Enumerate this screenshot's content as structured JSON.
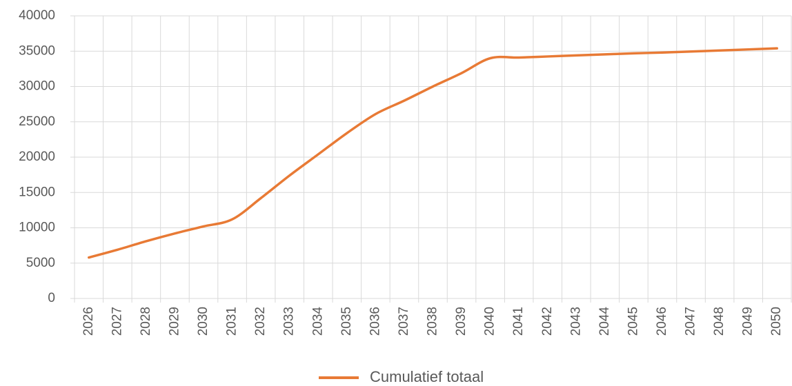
{
  "chart_data": {
    "type": "line",
    "categories": [
      "2026",
      "2027",
      "2028",
      "2029",
      "2030",
      "2031",
      "2032",
      "2033",
      "2034",
      "2035",
      "2036",
      "2037",
      "2038",
      "2039",
      "2040",
      "2041",
      "2042",
      "2043",
      "2044",
      "2045",
      "2046",
      "2047",
      "2048",
      "2049",
      "2050"
    ],
    "series": [
      {
        "name": "Cumulatief totaal",
        "color": "#e87a35",
        "values": [
          5800,
          6900,
          8100,
          9200,
          10200,
          11200,
          14200,
          17400,
          20400,
          23400,
          26100,
          28000,
          30000,
          31900,
          34000,
          34100,
          34250,
          34400,
          34550,
          34700,
          34800,
          34950,
          35100,
          35250,
          35400
        ]
      }
    ],
    "ylim": [
      0,
      40000
    ],
    "yticks": [
      0,
      5000,
      10000,
      15000,
      20000,
      25000,
      30000,
      35000,
      40000
    ],
    "grid": true,
    "legend": "bottom"
  }
}
